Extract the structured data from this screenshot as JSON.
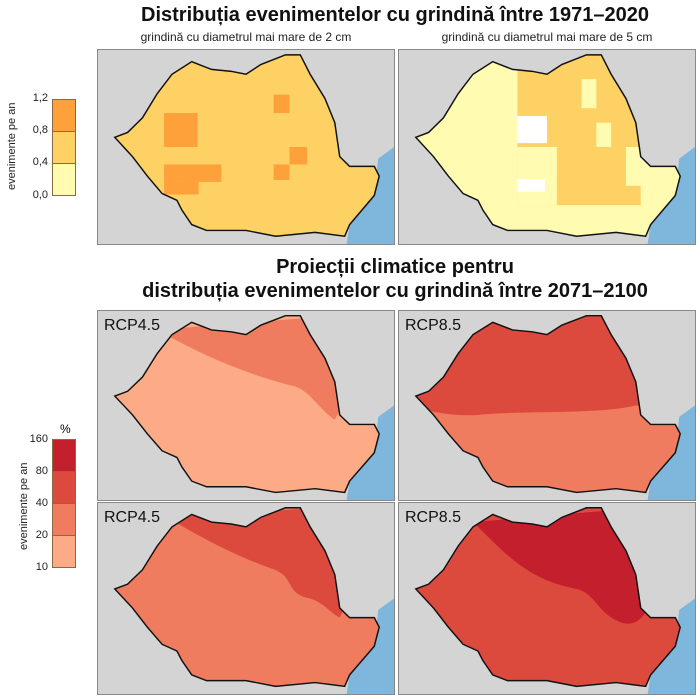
{
  "title_top": "Distribuția evenimentelor cu grindină între 1971–2020",
  "subtitle_left": "grindină cu diametrul mai mare de 2 cm",
  "subtitle_right": "grindină cu diametrul mai mare de 5 cm",
  "title_bottom_line1": "Proiecții climatice pentru",
  "title_bottom_line2": "distribuția evenimentelor cu grindină între 2071–2100",
  "legend_top": {
    "axis_label": "evenimente pe an",
    "ticks": [
      "1,2",
      "0,8",
      "0,4",
      "0,0"
    ],
    "colors": [
      "#fea13a",
      "#fed164",
      "#fffbb0"
    ]
  },
  "legend_bottom": {
    "unit": "%",
    "axis_label": "evenimente pe an",
    "ticks": [
      "160",
      "80",
      "40",
      "20",
      "10"
    ],
    "colors": [
      "#c41f2d",
      "#dc4a3e",
      "#ef7c5e",
      "#fdab87"
    ]
  },
  "panels": [
    {
      "label": "RCP4.5"
    },
    {
      "label": "RCP8.5"
    },
    {
      "label": "RCP4.5"
    },
    {
      "label": "RCP8.5"
    }
  ],
  "colors": {
    "land": "#d4d4d4",
    "sea": "#7fb6dc",
    "border": "#111111"
  }
}
